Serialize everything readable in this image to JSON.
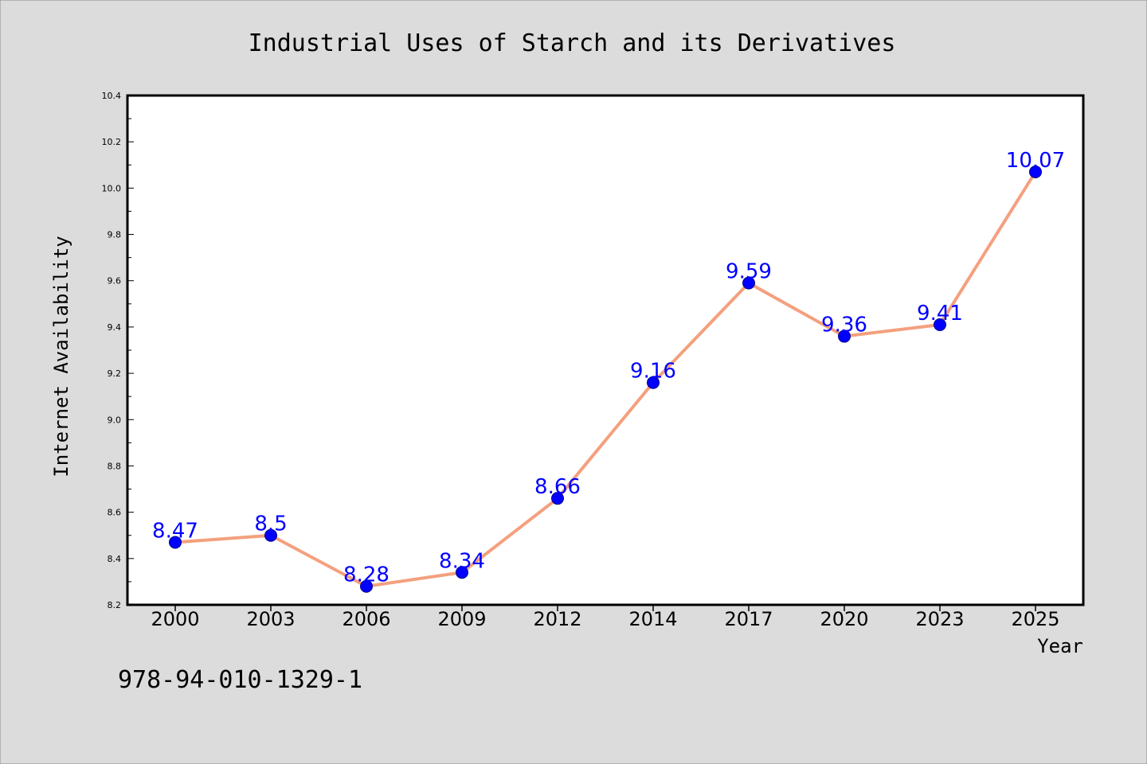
{
  "colors": {
    "background": "#dcdcdc",
    "plot_background": "#ffffff",
    "line": "#f4a07e",
    "marker": "#0000ff",
    "data_label": "#0000ff"
  },
  "footer_code": "978-94-010-1329-1",
  "chart_data": {
    "type": "line",
    "title": "Industrial Uses of Starch and its Derivatives",
    "xlabel": "Year",
    "ylabel": "Internet Availability",
    "categories": [
      "2000",
      "2003",
      "2006",
      "2009",
      "2012",
      "2014",
      "2017",
      "2020",
      "2023",
      "2025"
    ],
    "series": [
      {
        "values": [
          8.47,
          8.5,
          8.28,
          8.34,
          8.66,
          9.16,
          9.59,
          9.36,
          9.41,
          10.07
        ],
        "data_labels": [
          "8.47",
          "8.5",
          "8.28",
          "8.34",
          "8.66",
          "9.16",
          "9.59",
          "9.36",
          "9.41",
          "10.07"
        ]
      }
    ],
    "ylim": [
      8.2,
      10.4
    ],
    "yticks": [
      "8.2",
      "8.4",
      "8.6",
      "8.8",
      "9.0",
      "9.2",
      "9.4",
      "9.6",
      "9.8",
      "10.0",
      "10.2",
      "10.4"
    ],
    "grid": false,
    "legend": "none"
  }
}
